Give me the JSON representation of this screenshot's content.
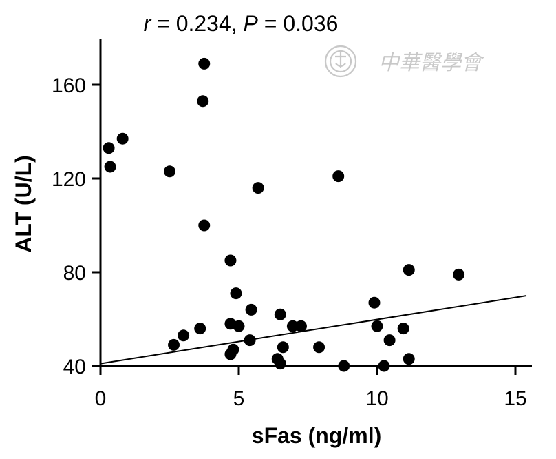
{
  "chart_data": {
    "type": "scatter",
    "title": {
      "r_symbol": "r",
      "r_text": " = 0.234, ",
      "p_symbol": "P",
      "p_text": " = 0.036"
    },
    "xlabel": "sFas (ng/ml)",
    "ylabel": "ALT (U/L)",
    "xlim": [
      0,
      15.5
    ],
    "ylim": [
      40,
      180
    ],
    "xticks": [
      0,
      5,
      10,
      15
    ],
    "yticks": [
      40,
      80,
      120,
      160
    ],
    "grid": false,
    "marker_color": "#000000",
    "points": [
      {
        "x": 0.3,
        "y": 133
      },
      {
        "x": 0.35,
        "y": 125
      },
      {
        "x": 0.8,
        "y": 137
      },
      {
        "x": 2.5,
        "y": 123
      },
      {
        "x": 2.65,
        "y": 49
      },
      {
        "x": 3.0,
        "y": 53
      },
      {
        "x": 3.6,
        "y": 56
      },
      {
        "x": 3.7,
        "y": 153
      },
      {
        "x": 3.75,
        "y": 169
      },
      {
        "x": 3.75,
        "y": 100
      },
      {
        "x": 4.7,
        "y": 85
      },
      {
        "x": 4.7,
        "y": 58
      },
      {
        "x": 4.7,
        "y": 45
      },
      {
        "x": 4.8,
        "y": 47
      },
      {
        "x": 4.9,
        "y": 71
      },
      {
        "x": 5.0,
        "y": 57
      },
      {
        "x": 5.4,
        "y": 51
      },
      {
        "x": 5.45,
        "y": 64
      },
      {
        "x": 5.7,
        "y": 116
      },
      {
        "x": 6.4,
        "y": 43
      },
      {
        "x": 6.5,
        "y": 62
      },
      {
        "x": 6.5,
        "y": 41
      },
      {
        "x": 6.6,
        "y": 48
      },
      {
        "x": 6.95,
        "y": 57
      },
      {
        "x": 7.25,
        "y": 57
      },
      {
        "x": 7.9,
        "y": 48
      },
      {
        "x": 8.6,
        "y": 121
      },
      {
        "x": 8.8,
        "y": 40
      },
      {
        "x": 9.9,
        "y": 67
      },
      {
        "x": 10.0,
        "y": 57
      },
      {
        "x": 10.25,
        "y": 40
      },
      {
        "x": 10.45,
        "y": 51
      },
      {
        "x": 10.95,
        "y": 56
      },
      {
        "x": 11.15,
        "y": 81
      },
      {
        "x": 11.15,
        "y": 43
      },
      {
        "x": 12.95,
        "y": 79
      }
    ],
    "regression_line": {
      "x": [
        0,
        15.4
      ],
      "y": [
        41,
        70
      ]
    }
  },
  "watermark": {
    "text": "中華醫學會",
    "color": "#c8c8c8"
  }
}
